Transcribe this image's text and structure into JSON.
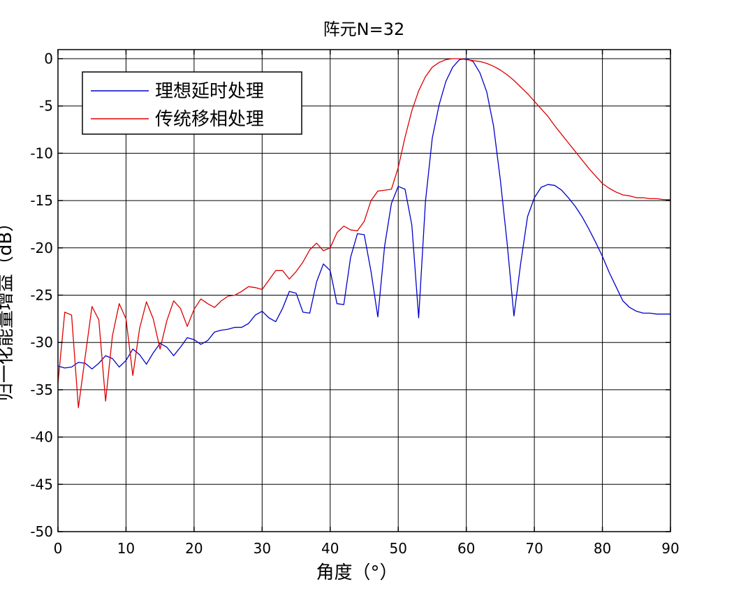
{
  "chart_data": {
    "type": "line",
    "title": "阵元N=32",
    "xlabel": "角度（°）",
    "ylabel": "归一化能量增益（dB）",
    "xlim": [
      0,
      90
    ],
    "ylim": [
      -50,
      1
    ],
    "xticks": [
      0,
      10,
      20,
      30,
      40,
      50,
      60,
      70,
      80,
      90
    ],
    "yticks": [
      0,
      -5,
      -10,
      -15,
      -20,
      -25,
      -30,
      -35,
      -40,
      -45,
      -50
    ],
    "grid": true,
    "legend_position": "top-left",
    "series": [
      {
        "name": "理想延时处理",
        "color": "#0000cc",
        "x": [
          0,
          1,
          2,
          3,
          4,
          5,
          6,
          7,
          8,
          9,
          10,
          11,
          12,
          13,
          14,
          15,
          16,
          17,
          18,
          19,
          20,
          21,
          22,
          23,
          24,
          25,
          26,
          27,
          28,
          29,
          30,
          31,
          32,
          33,
          34,
          35,
          36,
          37,
          38,
          39,
          40,
          41,
          42,
          43,
          44,
          45,
          46,
          47,
          48,
          49,
          50,
          51,
          52,
          53,
          54,
          55,
          56,
          57,
          58,
          59,
          60,
          61,
          62,
          63,
          64,
          65,
          66,
          67,
          68,
          69,
          70,
          71,
          72,
          73,
          74,
          75,
          76,
          77,
          78,
          79,
          80,
          81,
          82,
          83,
          84,
          85,
          86,
          87,
          88,
          89,
          90
        ],
        "values": [
          -32.5,
          -32.7,
          -32.6,
          -32.1,
          -32.2,
          -32.8,
          -32.2,
          -31.4,
          -31.7,
          -32.6,
          -31.9,
          -30.7,
          -31.3,
          -32.3,
          -31.1,
          -30.1,
          -30.5,
          -31.4,
          -30.5,
          -29.5,
          -29.7,
          -30.2,
          -29.8,
          -28.9,
          -28.7,
          -28.6,
          -28.4,
          -28.4,
          -28.0,
          -27.1,
          -26.7,
          -27.4,
          -27.8,
          -26.4,
          -24.6,
          -24.8,
          -26.8,
          -26.9,
          -23.6,
          -21.7,
          -22.4,
          -25.9,
          -26.0,
          -21.0,
          -18.5,
          -18.6,
          -22.5,
          -27.3,
          -19.8,
          -15.3,
          -13.5,
          -13.8,
          -17.6,
          -27.4,
          -15.1,
          -8.4,
          -4.9,
          -2.4,
          -0.9,
          -0.1,
          0,
          -0.3,
          -1.5,
          -3.5,
          -7.1,
          -12.8,
          -19.5,
          -27.2,
          -21.6,
          -16.7,
          -14.7,
          -13.6,
          -13.3,
          -13.4,
          -13.9,
          -14.7,
          -15.6,
          -16.7,
          -18.0,
          -19.4,
          -20.9,
          -22.6,
          -24.1,
          -25.6,
          -26.3,
          -26.7,
          -26.9,
          -26.9,
          -27.0,
          -27.0,
          -27.0
        ]
      },
      {
        "name": "传统移相处理",
        "color": "#dd0000",
        "x": [
          0,
          1,
          2,
          3,
          4,
          5,
          6,
          7,
          8,
          9,
          10,
          11,
          12,
          13,
          14,
          15,
          16,
          17,
          18,
          19,
          20,
          21,
          22,
          23,
          24,
          25,
          26,
          27,
          28,
          29,
          30,
          31,
          32,
          33,
          34,
          35,
          36,
          37,
          38,
          39,
          40,
          41,
          42,
          43,
          44,
          45,
          46,
          47,
          48,
          49,
          50,
          51,
          52,
          53,
          54,
          55,
          56,
          57,
          58,
          59,
          60,
          61,
          62,
          63,
          64,
          65,
          66,
          67,
          68,
          69,
          70,
          71,
          72,
          73,
          74,
          75,
          76,
          77,
          78,
          79,
          80,
          81,
          82,
          83,
          84,
          85,
          86,
          87,
          88,
          89,
          90
        ],
        "values": [
          -34.3,
          -26.8,
          -27.1,
          -36.9,
          -31.5,
          -26.2,
          -27.6,
          -36.2,
          -29.3,
          -25.9,
          -27.5,
          -33.5,
          -28.5,
          -25.7,
          -27.5,
          -30.7,
          -27.7,
          -25.6,
          -26.4,
          -28.3,
          -26.5,
          -25.4,
          -25.9,
          -26.3,
          -25.6,
          -25.1,
          -25.0,
          -24.6,
          -24.1,
          -24.2,
          -24.4,
          -23.4,
          -22.4,
          -22.4,
          -23.3,
          -22.5,
          -21.5,
          -20.2,
          -19.5,
          -20.3,
          -20.0,
          -18.4,
          -17.7,
          -18.1,
          -18.2,
          -17.2,
          -15.0,
          -14.0,
          -13.9,
          -13.8,
          -11.5,
          -8.3,
          -5.5,
          -3.4,
          -1.9,
          -0.9,
          -0.4,
          -0.1,
          0,
          0,
          -0.1,
          -0.2,
          -0.3,
          -0.5,
          -0.8,
          -1.2,
          -1.7,
          -2.3,
          -3.0,
          -3.7,
          -4.5,
          -5.3,
          -6.1,
          -7.1,
          -8.0,
          -8.9,
          -9.8,
          -10.7,
          -11.6,
          -12.4,
          -13.2,
          -13.7,
          -14.1,
          -14.4,
          -14.5,
          -14.7,
          -14.7,
          -14.8,
          -14.8,
          -14.9,
          -14.9
        ]
      }
    ]
  }
}
